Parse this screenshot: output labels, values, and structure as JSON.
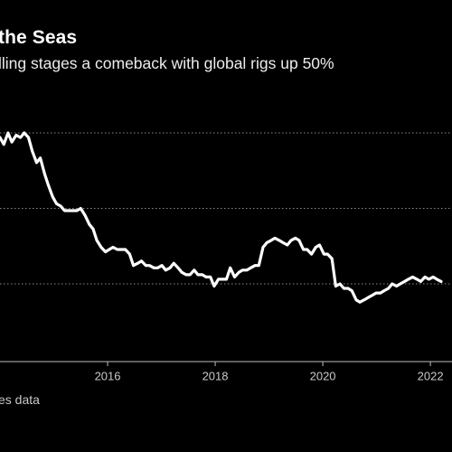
{
  "header": {
    "title": "the Seas",
    "subtitle": "lling stages a comeback with global rigs up 50%"
  },
  "footer": {
    "source": "es data"
  },
  "chart_data": {
    "type": "line",
    "title": "the Seas",
    "subtitle": "lling stages a comeback with global rigs up 50%",
    "xlabel": "",
    "ylabel": "",
    "x_ticks": [
      "2016",
      "2018",
      "2020",
      "2022"
    ],
    "xlim": [
      2014.0,
      2022.2
    ],
    "ylim": [
      0,
      1
    ],
    "grid": "horizontal-dotted",
    "line_color": "#ffffff",
    "series": [
      {
        "x": [
          2014.0,
          2014.07,
          2014.15,
          2014.22,
          2014.3,
          2014.38,
          2014.45,
          2014.53,
          2014.6,
          2014.68,
          2014.75,
          2014.83,
          2014.9,
          2014.98,
          2015.05,
          2015.13,
          2015.2,
          2015.28,
          2015.35,
          2015.43,
          2015.5,
          2015.58,
          2015.66,
          2015.73,
          2015.8,
          2015.88,
          2015.96,
          2016.03,
          2016.1,
          2016.18,
          2016.26,
          2016.33,
          2016.41,
          2016.48,
          2016.56,
          2016.63,
          2016.71,
          2016.78,
          2016.86,
          2016.93,
          2017.01,
          2017.08,
          2017.16,
          2017.23,
          2017.31,
          2017.38,
          2017.46,
          2017.53,
          2017.61,
          2017.68,
          2017.76,
          2017.83,
          2017.91,
          2017.98,
          2018.06,
          2018.13,
          2018.21,
          2018.28,
          2018.36,
          2018.44,
          2018.51,
          2018.59,
          2018.66,
          2018.74,
          2018.81,
          2018.89,
          2018.96,
          2019.04,
          2019.11,
          2019.19,
          2019.26,
          2019.34,
          2019.41,
          2019.49,
          2019.56,
          2019.64,
          2019.71,
          2019.79,
          2019.87,
          2019.94,
          2020.02,
          2020.09,
          2020.17,
          2020.24,
          2020.32,
          2020.39,
          2020.47,
          2020.54,
          2020.62,
          2020.69,
          2020.77,
          2020.84,
          2020.92,
          2020.99,
          2021.07,
          2021.14,
          2021.22,
          2021.29,
          2021.37,
          2021.44,
          2021.52,
          2021.59,
          2021.67,
          2021.75,
          2021.82,
          2021.9,
          2021.97,
          2022.05,
          2022.12,
          2022.2
        ],
        "y": [
          0.98,
          0.95,
          1.0,
          0.96,
          0.99,
          0.98,
          1.0,
          0.98,
          0.92,
          0.87,
          0.89,
          0.82,
          0.77,
          0.72,
          0.69,
          0.68,
          0.66,
          0.66,
          0.66,
          0.66,
          0.67,
          0.64,
          0.6,
          0.58,
          0.53,
          0.5,
          0.48,
          0.49,
          0.5,
          0.49,
          0.49,
          0.49,
          0.47,
          0.42,
          0.43,
          0.44,
          0.42,
          0.42,
          0.41,
          0.41,
          0.42,
          0.4,
          0.41,
          0.43,
          0.41,
          0.39,
          0.38,
          0.38,
          0.4,
          0.38,
          0.38,
          0.37,
          0.37,
          0.33,
          0.36,
          0.36,
          0.36,
          0.41,
          0.37,
          0.39,
          0.4,
          0.4,
          0.41,
          0.42,
          0.42,
          0.5,
          0.52,
          0.53,
          0.54,
          0.53,
          0.52,
          0.51,
          0.53,
          0.54,
          0.53,
          0.49,
          0.49,
          0.47,
          0.5,
          0.51,
          0.47,
          0.47,
          0.45,
          0.33,
          0.34,
          0.32,
          0.32,
          0.31,
          0.27,
          0.26,
          0.27,
          0.28,
          0.29,
          0.3,
          0.3,
          0.31,
          0.32,
          0.34,
          0.33,
          0.34,
          0.35,
          0.36,
          0.37,
          0.36,
          0.35,
          0.37,
          0.36,
          0.37,
          0.36,
          0.35
        ]
      }
    ]
  }
}
